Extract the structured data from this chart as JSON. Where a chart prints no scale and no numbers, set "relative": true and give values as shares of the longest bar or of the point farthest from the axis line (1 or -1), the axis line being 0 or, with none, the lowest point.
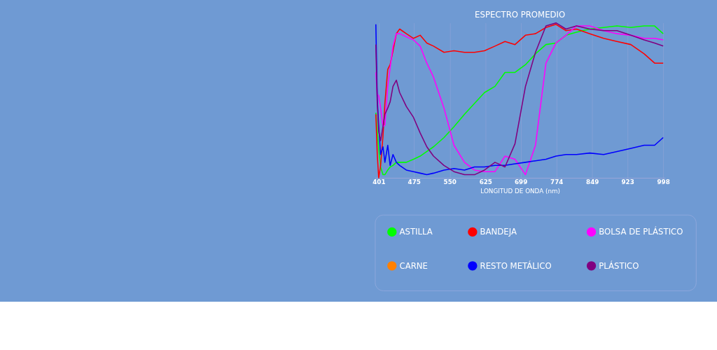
{
  "chart_data": {
    "type": "line",
    "title": "ESPECTRO PROMEDIO",
    "xlabel": "LONGITUD DE ONDA (nm)",
    "relative": true,
    "grid": "x",
    "legend": "bottom",
    "x": [
      395,
      398,
      401,
      405,
      410,
      414,
      420,
      425,
      431,
      438,
      445,
      459,
      474,
      488,
      502,
      516,
      538,
      559,
      581,
      602,
      623,
      645,
      666,
      687,
      709,
      730,
      752,
      773,
      794,
      816,
      844,
      873,
      901,
      930,
      958,
      980,
      998
    ],
    "xlim": [
      393,
      1002
    ],
    "xticks": [
      401,
      475,
      550,
      625,
      699,
      774,
      849,
      923,
      998
    ],
    "series": [
      {
        "name": "ASTILLA",
        "color": "#00ff00",
        "values": [
          0.42,
          0.3,
          0.19,
          0.07,
          0.02,
          0.02,
          0.05,
          0.07,
          0.08,
          0.1,
          0.1,
          0.1,
          0.12,
          0.14,
          0.17,
          0.2,
          0.26,
          0.33,
          0.41,
          0.48,
          0.55,
          0.59,
          0.68,
          0.68,
          0.73,
          0.8,
          0.86,
          0.87,
          0.92,
          0.94,
          0.96,
          0.97,
          0.98,
          0.97,
          0.98,
          0.98,
          0.93
        ]
      },
      {
        "name": "BANDEJA",
        "color": "#ff0000",
        "values": [
          0.41,
          0.15,
          0,
          0.08,
          0.27,
          0.48,
          0.7,
          0.73,
          0.82,
          0.93,
          0.96,
          0.93,
          0.9,
          0.92,
          0.87,
          0.85,
          0.81,
          0.82,
          0.81,
          0.81,
          0.82,
          0.85,
          0.88,
          0.86,
          0.92,
          0.93,
          0.97,
          0.99,
          0.95,
          0.96,
          0.93,
          0.9,
          0.88,
          0.86,
          0.8,
          0.74,
          0.74
        ]
      },
      {
        "name": "BOLSA DE PLÁSTICO",
        "color": "#ff00ff",
        "values": [
          0.68,
          0.54,
          0.53,
          0.45,
          0.33,
          0.34,
          0.59,
          0.71,
          0.85,
          0.93,
          0.93,
          0.91,
          0.89,
          0.85,
          0.74,
          0.65,
          0.45,
          0.21,
          0.1,
          0.05,
          0.04,
          0.04,
          0.14,
          0.12,
          0.02,
          0.21,
          0.74,
          0.87,
          0.92,
          0.98,
          0.98,
          0.95,
          0.93,
          0.92,
          0.9,
          0.9,
          0.89
        ]
      },
      {
        "name": "CARNE",
        "color": "#ff8000",
        "values": [
          null,
          null,
          null,
          null,
          null,
          null,
          null,
          null,
          null,
          null,
          null,
          null,
          null,
          null,
          null,
          null,
          null,
          null,
          null,
          null,
          null,
          null,
          null,
          null,
          null,
          null,
          null,
          null,
          null,
          null,
          null,
          null,
          null,
          null,
          null,
          null,
          null
        ]
      },
      {
        "name": "RESTO METÁLICO",
        "color": "#0000ff",
        "values": [
          0.99,
          0.51,
          0.34,
          0.15,
          0.2,
          0.1,
          0.21,
          0.08,
          0.15,
          0.1,
          0.08,
          0.05,
          0.04,
          0.03,
          0.02,
          0.03,
          0.05,
          0.06,
          0.05,
          0.07,
          0.07,
          0.08,
          0.08,
          0.09,
          0.1,
          0.11,
          0.12,
          0.14,
          0.15,
          0.15,
          0.16,
          0.15,
          0.17,
          0.19,
          0.21,
          0.21,
          0.26
        ]
      },
      {
        "name": "PLÁSTICO",
        "color": "#800080",
        "values": [
          0.86,
          0.48,
          0.3,
          0.24,
          0.33,
          0.41,
          0.45,
          0.49,
          0.59,
          0.63,
          0.55,
          0.46,
          0.39,
          0.29,
          0.2,
          0.14,
          0.08,
          0.04,
          0.02,
          0.02,
          0.05,
          0.1,
          0.07,
          0.22,
          0.59,
          0.81,
          0.98,
          1.0,
          0.96,
          0.98,
          0.96,
          0.95,
          0.95,
          0.92,
          0.89,
          0.87,
          0.85
        ]
      }
    ]
  }
}
